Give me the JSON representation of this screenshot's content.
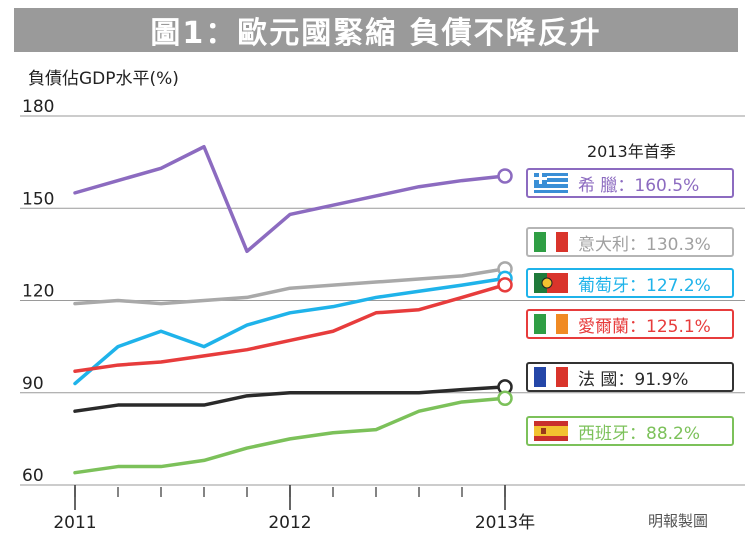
{
  "title": "圖1：歐元國緊縮 負債不降反升",
  "ylabel": "負債佔GDP水平(%)",
  "source": "明報製圖",
  "legend_header": "2013年首季",
  "chart_data": {
    "type": "line",
    "title": "圖1：歐元國緊縮 負債不降反升",
    "ylabel": "負債佔GDP水平(%)",
    "xlabel": "",
    "ylim": [
      60,
      180
    ],
    "yticks": [
      60,
      90,
      120,
      150,
      180
    ],
    "xticks": [
      "2011",
      "2012",
      "2013年"
    ],
    "xlim": [
      0,
      10
    ],
    "grid": true,
    "x": [
      0,
      1,
      2,
      3,
      4,
      5,
      6,
      7,
      8,
      9,
      10
    ],
    "series": [
      {
        "name": "希臘",
        "label_value": "160.5%",
        "color": "#8c6bc0",
        "values": [
          155.0,
          159.0,
          163.0,
          170.0,
          136.0,
          148.0,
          151.0,
          154.0,
          157.0,
          159.0,
          160.5
        ]
      },
      {
        "name": "意大利",
        "label_value": "130.3%",
        "color": "#a9a9a9",
        "values": [
          119.0,
          120.0,
          119.0,
          120.0,
          121.0,
          124.0,
          125.0,
          126.0,
          127.0,
          128.0,
          130.3
        ]
      },
      {
        "name": "葡萄牙",
        "label_value": "127.2%",
        "color": "#1fb3ea",
        "values": [
          93.0,
          105.0,
          110.0,
          105.0,
          112.0,
          116.0,
          118.0,
          121.0,
          123.0,
          125.0,
          127.2
        ]
      },
      {
        "name": "愛爾蘭",
        "label_value": "125.1%",
        "color": "#e73c3c",
        "values": [
          97.0,
          99.0,
          100.0,
          102.0,
          104.0,
          107.0,
          110.0,
          116.0,
          117.0,
          121.0,
          125.1
        ]
      },
      {
        "name": "法國",
        "label_value": "91.9%",
        "color": "#2a2a2a",
        "values": [
          84.0,
          86.0,
          86.0,
          86.0,
          89.0,
          90.0,
          90.0,
          90.0,
          90.0,
          91.0,
          91.9
        ]
      },
      {
        "name": "西班牙",
        "label_value": "88.2%",
        "color": "#7cc15a",
        "values": [
          64.0,
          66.0,
          66.0,
          68.0,
          72.0,
          75.0,
          77.0,
          78.0,
          84.0,
          87.0,
          88.2
        ]
      }
    ]
  },
  "legend": [
    {
      "label": "希 臘：160.5%",
      "text_color": "#8c6bc0",
      "border": "#8c6bc0",
      "flag": "flag-greece-icon"
    },
    {
      "label": "意大利：130.3%",
      "text_color": "#a0a0a0",
      "border": "#b5b5b5",
      "flag": "flag-italy-icon"
    },
    {
      "label": "葡萄牙：127.2%",
      "text_color": "#1fb3ea",
      "border": "#1fb3ea",
      "flag": "flag-portugal-icon"
    },
    {
      "label": "愛爾蘭：125.1%",
      "text_color": "#e73c3c",
      "border": "#e73c3c",
      "flag": "flag-ireland-icon"
    },
    {
      "label": "法 國：91.9%",
      "text_color": "#2a2a2a",
      "border": "#333333",
      "flag": "flag-france-icon"
    },
    {
      "label": "西班牙：88.2%",
      "text_color": "#7cc15a",
      "border": "#7cc15a",
      "flag": "flag-spain-icon"
    }
  ]
}
